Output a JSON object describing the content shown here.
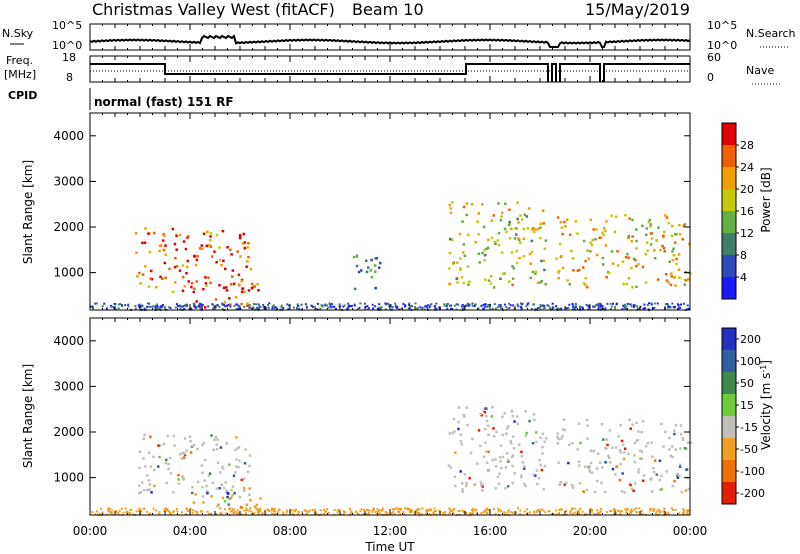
{
  "header": {
    "site": "Christmas Valley West (fitACF)",
    "beam": "Beam 10",
    "date": "15/May/2019"
  },
  "params": {
    "nsky_label": "N.Sky",
    "nsky_ticks": [
      "10^5",
      "10^0"
    ],
    "nsearch_label": "N.Search",
    "nsearch_ticks": [
      "10^5",
      "10^0"
    ],
    "freq_label": "Freq.",
    "freq_unit": "[MHz]",
    "freq_ticks": [
      "18",
      "8"
    ],
    "nave_label": "Nave",
    "nave_ticks": [
      "60",
      "0"
    ],
    "cpid_label": "CPID",
    "cpid_value": "normal (fast) 151 RF"
  },
  "x_axis": {
    "label": "Time UT",
    "ticks": [
      "00:00",
      "04:00",
      "08:00",
      "12:00",
      "16:00",
      "20:00",
      "00:00"
    ]
  },
  "chart_data": [
    {
      "type": "heatmap",
      "panel": "power",
      "ylabel": "Slant Range [km]",
      "yticks": [
        1000,
        2000,
        3000,
        4000
      ],
      "ylim": [
        180,
        4500
      ],
      "xlim_hours": [
        0,
        24
      ],
      "colorbar": {
        "label": "Power [dB]",
        "ticks": [
          "4",
          "8",
          "12",
          "16",
          "20",
          "24",
          "28"
        ],
        "colors": [
          "#1a1aff",
          "#2c4bb8",
          "#3e7f6a",
          "#62b043",
          "#c8c800",
          "#f0a000",
          "#f06000",
          "#e00000"
        ]
      },
      "scatter_regions": [
        {
          "t0": 1.8,
          "t1": 6.5,
          "r0": 600,
          "r1": 2000,
          "value_db": 26
        },
        {
          "t0": 4.0,
          "t1": 6.8,
          "r0": 250,
          "r1": 800,
          "value_db": 30
        },
        {
          "t0": 10.3,
          "t1": 11.6,
          "r0": 650,
          "r1": 1500,
          "value_db": 10
        },
        {
          "t0": 14.3,
          "t1": 18.2,
          "r0": 700,
          "r1": 2600,
          "value_db": 18
        },
        {
          "t0": 18.6,
          "t1": 24.0,
          "r0": 700,
          "r1": 2300,
          "value_db": 20
        }
      ]
    },
    {
      "type": "heatmap",
      "panel": "velocity",
      "ylabel": "Slant Range [km]",
      "yticks": [
        1000,
        2000,
        3000,
        4000
      ],
      "ylim": [
        180,
        4500
      ],
      "xlim_hours": [
        0,
        24
      ],
      "colorbar": {
        "label": "Velocity [m s^-1]",
        "ticks": [
          "200",
          "100",
          "50",
          "15",
          "-15",
          "-50",
          "-100",
          "-200"
        ],
        "colors": [
          "#2030c0",
          "#3060a0",
          "#3e8a4a",
          "#6ccc3a",
          "#c0c0b8",
          "#f0a020",
          "#f07000",
          "#e02000"
        ]
      },
      "scatter_regions": [
        {
          "t0": 1.8,
          "t1": 6.5,
          "r0": 600,
          "r1": 2000,
          "value_ms": 0
        },
        {
          "t0": 4.0,
          "t1": 6.8,
          "r0": 250,
          "r1": 800,
          "value_ms": -60
        },
        {
          "t0": 14.3,
          "t1": 18.2,
          "r0": 700,
          "r1": 2600,
          "value_ms": 0
        },
        {
          "t0": 18.6,
          "t1": 24.0,
          "r0": 700,
          "r1": 2300,
          "value_ms": 0
        }
      ]
    }
  ]
}
